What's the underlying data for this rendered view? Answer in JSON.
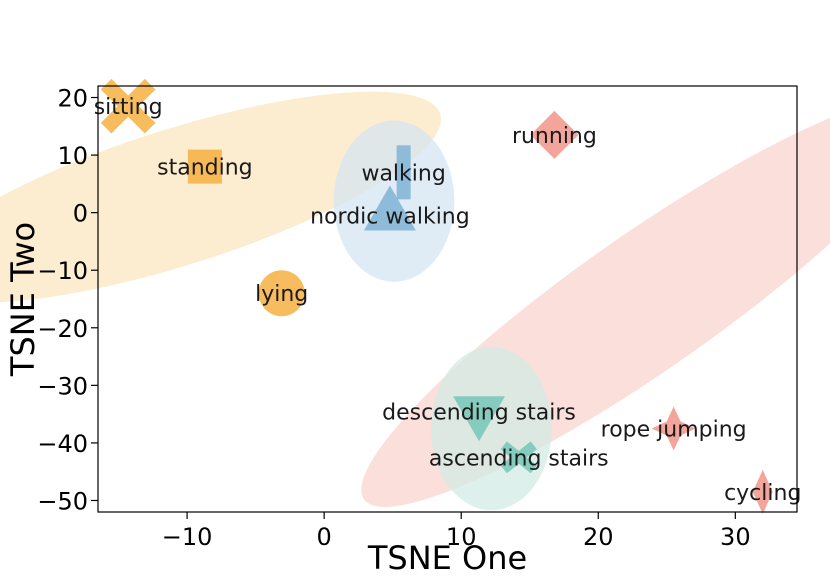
{
  "chart_data": {
    "type": "scatter",
    "xlabel": "TSNE One",
    "ylabel": "TSNE Two",
    "xlim": [
      -16.5,
      34.5
    ],
    "ylim": [
      -52,
      22
    ],
    "xticks": [
      -10,
      0,
      10,
      20,
      30
    ],
    "yticks": [
      20,
      10,
      0,
      -10,
      -20,
      -30,
      -40,
      -50
    ],
    "xtick_labels": [
      "−10",
      "0",
      "10",
      "20",
      "30"
    ],
    "ytick_labels": [
      "20",
      "10",
      "0",
      "−10",
      "−20",
      "−30",
      "−40",
      "−50"
    ],
    "grid": false,
    "points": [
      {
        "label": "sitting",
        "x": -14.3,
        "y": 18.5,
        "marker": "x",
        "color": "#f5b041"
      },
      {
        "label": "standing",
        "x": -8.7,
        "y": 8.0,
        "marker": "square",
        "color": "#f5b041"
      },
      {
        "label": "lying",
        "x": -3.1,
        "y": -14.0,
        "marker": "circle",
        "color": "#f5b041"
      },
      {
        "label": "walking",
        "x": 5.8,
        "y": 7.0,
        "marker": "thin_rect",
        "color": "#7fb3d5"
      },
      {
        "label": "nordic walking",
        "x": 4.8,
        "y": -0.5,
        "marker": "triangle_up",
        "color": "#7fb3d5"
      },
      {
        "label": "running",
        "x": 16.8,
        "y": 13.5,
        "marker": "diamond",
        "color": "#f1948a"
      },
      {
        "label": "rope jumping",
        "x": 25.5,
        "y": -37.5,
        "marker": "star4",
        "color": "#f1948a"
      },
      {
        "label": "cycling",
        "x": 32.0,
        "y": -48.5,
        "marker": "thin_diamond",
        "color": "#f1948a"
      },
      {
        "label": "descending stairs",
        "x": 11.3,
        "y": -34.5,
        "marker": "triangle_down",
        "color": "#76c7b7"
      },
      {
        "label": "ascending stairs",
        "x": 14.2,
        "y": -42.5,
        "marker": "x_thin",
        "color": "#76c7b7"
      }
    ],
    "clusters": [
      {
        "color": "#fbe5c0",
        "cx": -10.7,
        "cy": 2.7,
        "rx": 24.0,
        "ry": 7.2,
        "angle_deg": 37
      },
      {
        "color": "#d6e6f2",
        "cx": 5.1,
        "cy": 2.0,
        "rx": 4.4,
        "ry": 14.0,
        "angle_deg": 0
      },
      {
        "color": "#fad4cf",
        "cx": 23.5,
        "cy": -15.5,
        "rx": 40.0,
        "ry": 5.6,
        "angle_deg": 59
      },
      {
        "color": "#d3ebe4",
        "cx": 12.2,
        "cy": -37.5,
        "rx": 4.4,
        "ry": 14.2,
        "angle_deg": 0
      }
    ]
  }
}
